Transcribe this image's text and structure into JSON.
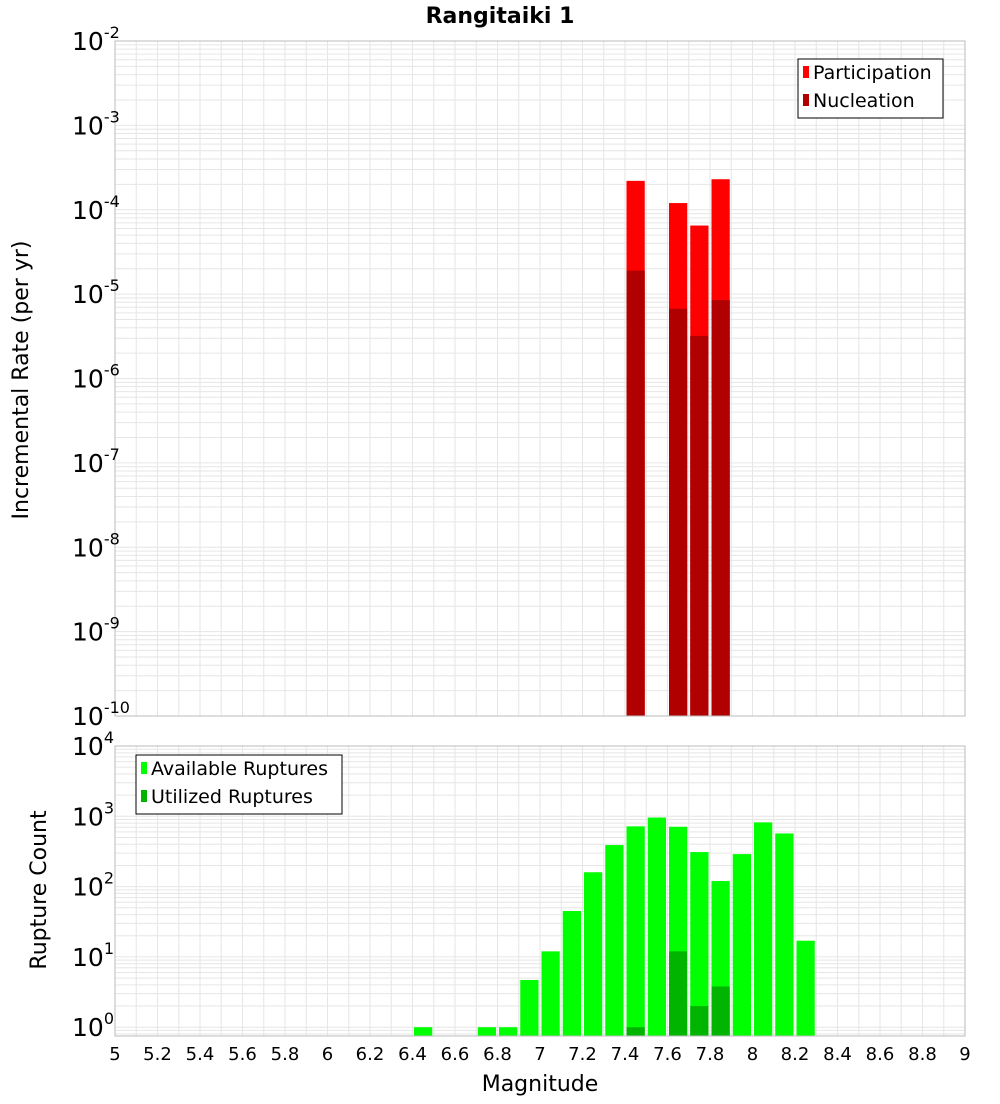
{
  "title": "Rangitaiki 1",
  "x_axis": {
    "label": "Magnitude",
    "range": [
      5,
      9
    ],
    "ticks": [
      "5",
      "5.2",
      "5.4",
      "5.6",
      "5.8",
      "6",
      "6.2",
      "6.4",
      "6.6",
      "6.8",
      "7",
      "7.2",
      "7.4",
      "7.6",
      "7.8",
      "8",
      "8.2",
      "8.4",
      "8.6",
      "8.8",
      "9"
    ]
  },
  "colors": {
    "participation": "#ff0000",
    "nucleation": "#b00000",
    "available": "#00ff00",
    "utilized": "#00b400",
    "grid": "#e6e6e6",
    "plot_border": "#bbbbbb"
  },
  "chart_data": [
    {
      "type": "bar",
      "panel": "top",
      "ylabel": "Incremental Rate (per yr)",
      "yscale": "log",
      "ylim": [
        1e-10,
        0.01
      ],
      "y_ticks": [
        {
          "base": "10",
          "exp": "-2"
        },
        {
          "base": "10",
          "exp": "-3"
        },
        {
          "base": "10",
          "exp": "-4"
        },
        {
          "base": "10",
          "exp": "-5"
        },
        {
          "base": "10",
          "exp": "-6"
        },
        {
          "base": "10",
          "exp": "-7"
        },
        {
          "base": "10",
          "exp": "-8"
        },
        {
          "base": "10",
          "exp": "-9"
        },
        {
          "base": "10",
          "exp": "-10"
        }
      ],
      "legend_placement": "top-right",
      "grid": true,
      "series": [
        {
          "name": "Participation",
          "x": [
            7.45,
            7.65,
            7.75,
            7.85
          ],
          "values": [
            0.00022,
            0.00012,
            6.5e-05,
            0.00023
          ]
        },
        {
          "name": "Nucleation",
          "x": [
            7.45,
            7.65,
            7.75,
            7.85
          ],
          "values": [
            1.9e-05,
            6.7e-06,
            3.2e-06,
            8.5e-06
          ]
        }
      ]
    },
    {
      "type": "bar",
      "panel": "bottom",
      "ylabel": "Rupture Count",
      "yscale": "log",
      "ylim": [
        0.75,
        10000
      ],
      "y_ticks": [
        {
          "base": "10",
          "exp": "4"
        },
        {
          "base": "10",
          "exp": "3"
        },
        {
          "base": "10",
          "exp": "2"
        },
        {
          "base": "10",
          "exp": "1"
        },
        {
          "base": "10",
          "exp": "0"
        }
      ],
      "legend_placement": "top-left",
      "grid": true,
      "series": [
        {
          "name": "Available Ruptures",
          "x": [
            6.45,
            6.75,
            6.85,
            6.95,
            7.05,
            7.15,
            7.25,
            7.35,
            7.45,
            7.55,
            7.65,
            7.75,
            7.85,
            7.95,
            8.05,
            8.15,
            8.25
          ],
          "values": [
            1,
            1,
            1,
            4.7,
            12,
            45,
            160,
            390,
            720,
            960,
            710,
            310,
            120,
            290,
            820,
            570,
            17
          ]
        },
        {
          "name": "Utilized Ruptures",
          "x": [
            7.45,
            7.65,
            7.75,
            7.85
          ],
          "values": [
            1,
            12,
            2,
            3.8
          ]
        }
      ]
    }
  ]
}
